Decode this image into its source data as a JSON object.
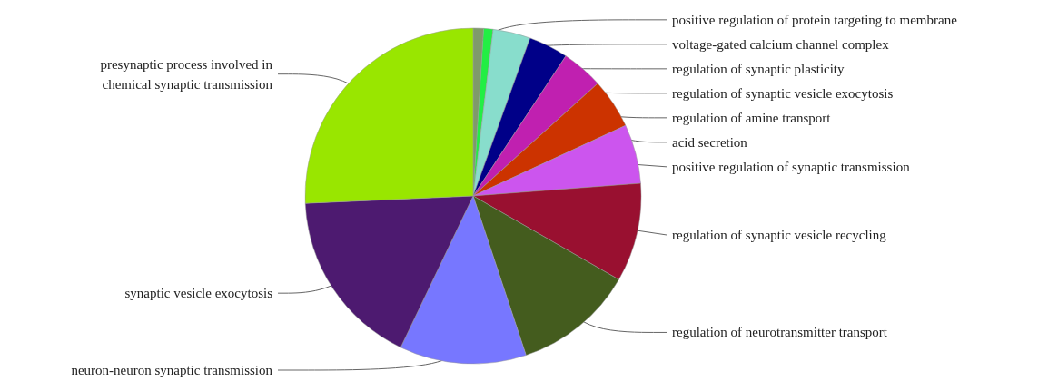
{
  "chart_data": {
    "type": "pie",
    "categories": [
      "positive regulation of protein targeting to membrane",
      "voltage-gated calcium channel complex",
      "regulation of synaptic plasticity",
      "regulation of synaptic vesicle exocytosis",
      "regulation of amine transport",
      "acid secretion",
      "positive regulation of synaptic transmission",
      "regulation of synaptic vesicle recycling",
      "regulation of neurotransmitter transport",
      "neuron-neuron synaptic transmission",
      "synaptic vesicle exocytosis",
      "presynaptic process involved in chemical synaptic transmission"
    ],
    "values": [
      1.0,
      0.9,
      3.6,
      3.8,
      4.0,
      4.8,
      5.7,
      9.5,
      11.6,
      12.2,
      17.2,
      25.7
    ],
    "colors": [
      "#7f9a6a",
      "#22ee44",
      "#88ddcc",
      "#000088",
      "#c020b0",
      "#cc3300",
      "#cc55ee",
      "#991030",
      "#445c1e",
      "#7777ff",
      "#4d1a70",
      "#99e600"
    ]
  }
}
